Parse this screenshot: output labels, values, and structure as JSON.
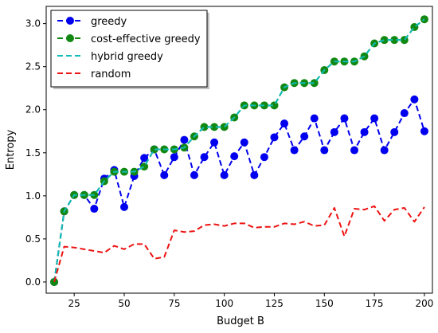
{
  "chart_data": {
    "type": "line",
    "title": "",
    "xlabel": "Budget B",
    "ylabel": "Entropy",
    "xlim": [
      11,
      204
    ],
    "ylim": [
      -0.13,
      3.2
    ],
    "xticks": [
      25,
      50,
      75,
      100,
      125,
      150,
      175,
      200
    ],
    "yticks": [
      0.0,
      0.5,
      1.0,
      1.5,
      2.0,
      2.5,
      3.0
    ],
    "xtick_labels": [
      "25",
      "50",
      "75",
      "100",
      "125",
      "150",
      "175",
      "200"
    ],
    "ytick_labels": [
      "0.0",
      "0.5",
      "1.0",
      "1.5",
      "2.0",
      "2.5",
      "3.0"
    ],
    "grid": false,
    "legend_position": "top-left",
    "series": [
      {
        "name": "greedy",
        "color": "#0000ee",
        "style": "dashed",
        "marker": "circle",
        "x": [
          15,
          20,
          25,
          30,
          35,
          40,
          45,
          50,
          55,
          60,
          65,
          70,
          75,
          80,
          85,
          90,
          95,
          100,
          105,
          110,
          115,
          120,
          125,
          130,
          135,
          140,
          145,
          150,
          155,
          160,
          165,
          170,
          175,
          180,
          185,
          190,
          195,
          200
        ],
        "y": [
          0.0,
          0.82,
          1.01,
          1.01,
          0.85,
          1.2,
          1.3,
          0.87,
          1.23,
          1.44,
          1.54,
          1.24,
          1.45,
          1.65,
          1.24,
          1.45,
          1.62,
          1.24,
          1.46,
          1.62,
          1.24,
          1.45,
          1.68,
          1.84,
          1.53,
          1.69,
          1.9,
          1.53,
          1.74,
          1.9,
          1.53,
          1.74,
          1.9,
          1.53,
          1.74,
          1.96,
          2.12,
          1.75
        ]
      },
      {
        "name": "cost-effective greedy",
        "color": "#118811",
        "style": "dashed",
        "marker": "circle",
        "x": [
          15,
          20,
          25,
          30,
          35,
          40,
          45,
          50,
          55,
          60,
          65,
          70,
          75,
          80,
          85,
          90,
          95,
          100,
          105,
          110,
          115,
          120,
          125,
          130,
          135,
          140,
          145,
          150,
          155,
          160,
          165,
          170,
          175,
          180,
          185,
          190,
          195,
          200
        ],
        "y": [
          0.0,
          0.82,
          1.01,
          1.01,
          1.01,
          1.17,
          1.28,
          1.28,
          1.28,
          1.34,
          1.54,
          1.54,
          1.54,
          1.56,
          1.69,
          1.8,
          1.8,
          1.8,
          1.91,
          2.05,
          2.05,
          2.05,
          2.05,
          2.26,
          2.31,
          2.31,
          2.31,
          2.46,
          2.56,
          2.56,
          2.56,
          2.62,
          2.77,
          2.81,
          2.81,
          2.81,
          2.96,
          3.05
        ]
      },
      {
        "name": "hybrid greedy",
        "color": "#11bbbb",
        "style": "dashed",
        "marker": "none",
        "x": [
          15,
          20,
          25,
          30,
          35,
          40,
          45,
          50,
          55,
          60,
          65,
          70,
          75,
          80,
          85,
          90,
          95,
          100,
          105,
          110,
          115,
          120,
          125,
          130,
          135,
          140,
          145,
          150,
          155,
          160,
          165,
          170,
          175,
          180,
          185,
          190,
          195,
          200
        ],
        "y": [
          0.0,
          0.82,
          1.01,
          1.01,
          1.01,
          1.17,
          1.28,
          1.28,
          1.28,
          1.34,
          1.54,
          1.54,
          1.54,
          1.56,
          1.69,
          1.8,
          1.8,
          1.8,
          1.91,
          2.05,
          2.05,
          2.05,
          2.05,
          2.26,
          2.31,
          2.31,
          2.31,
          2.46,
          2.56,
          2.56,
          2.56,
          2.62,
          2.77,
          2.81,
          2.81,
          2.81,
          2.96,
          3.05
        ]
      },
      {
        "name": "random",
        "color": "#ee1111",
        "style": "dashed",
        "marker": "none",
        "x": [
          15,
          20,
          25,
          30,
          35,
          40,
          45,
          50,
          55,
          60,
          65,
          70,
          75,
          80,
          85,
          90,
          95,
          100,
          105,
          110,
          115,
          120,
          125,
          130,
          135,
          140,
          145,
          150,
          155,
          160,
          165,
          170,
          175,
          180,
          185,
          190,
          195,
          200
        ],
        "y": [
          0.0,
          0.41,
          0.4,
          0.38,
          0.36,
          0.34,
          0.42,
          0.38,
          0.44,
          0.44,
          0.27,
          0.29,
          0.6,
          0.58,
          0.59,
          0.66,
          0.67,
          0.65,
          0.68,
          0.68,
          0.63,
          0.64,
          0.64,
          0.68,
          0.67,
          0.7,
          0.65,
          0.66,
          0.86,
          0.53,
          0.85,
          0.84,
          0.88,
          0.71,
          0.84,
          0.86,
          0.7,
          0.87
        ]
      }
    ]
  }
}
